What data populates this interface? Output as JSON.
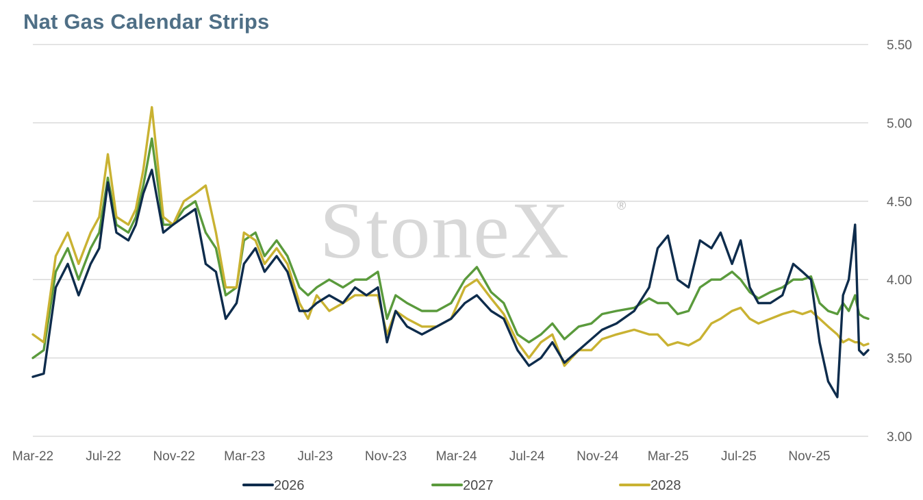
{
  "title": "Nat Gas Calendar Strips",
  "watermark": "StoneX",
  "colors": {
    "2026": "#0e2c4c",
    "2027": "#5a9a3c",
    "2028": "#c9b232",
    "grid": "#d4d4d4",
    "title": "#4f6f86"
  },
  "chart_data": {
    "type": "line",
    "title": "Nat Gas Calendar Strips",
    "x_tick_labels": [
      "Mar-22",
      "Jul-22",
      "Nov-22",
      "Mar-23",
      "Jul-23",
      "Nov-23",
      "Mar-24",
      "Jul-24",
      "Nov-24",
      "Mar-25",
      "Jul-25",
      "Nov-25"
    ],
    "y_tick_labels": [
      "3.00",
      "3.50",
      "4.00",
      "4.50",
      "5.00",
      "5.50"
    ],
    "ylim": [
      3.0,
      5.5
    ],
    "y_axis_side": "right",
    "grid": true,
    "legend_position": "bottom",
    "series": [
      {
        "name": "2026",
        "x": [
          "2022-03-01",
          "2022-03-20",
          "2022-04-10",
          "2022-05-01",
          "2022-05-20",
          "2022-06-10",
          "2022-06-25",
          "2022-07-10",
          "2022-07-25",
          "2022-08-15",
          "2022-08-28",
          "2022-09-10",
          "2022-09-25",
          "2022-10-15",
          "2022-11-01",
          "2022-11-20",
          "2022-12-10",
          "2022-12-28",
          "2023-01-15",
          "2023-02-01",
          "2023-02-20",
          "2023-03-05",
          "2023-03-25",
          "2023-04-10",
          "2023-05-01",
          "2023-05-20",
          "2023-06-10",
          "2023-06-25",
          "2023-07-10",
          "2023-08-01",
          "2023-08-25",
          "2023-09-15",
          "2023-10-05",
          "2023-10-25",
          "2023-11-10",
          "2023-11-25",
          "2023-12-15",
          "2024-01-10",
          "2024-02-05",
          "2024-03-01",
          "2024-03-25",
          "2024-04-15",
          "2024-05-10",
          "2024-06-01",
          "2024-06-25",
          "2024-07-15",
          "2024-08-05",
          "2024-08-25",
          "2024-09-15",
          "2024-10-10",
          "2024-11-01",
          "2024-11-20",
          "2024-12-15",
          "2025-01-15",
          "2025-02-10",
          "2025-02-25",
          "2025-03-15",
          "2025-04-01",
          "2025-04-20",
          "2025-05-10",
          "2025-05-30",
          "2025-06-15",
          "2025-07-05",
          "2025-07-20",
          "2025-08-05",
          "2025-08-20",
          "2025-09-10",
          "2025-10-01",
          "2025-10-20",
          "2025-11-05",
          "2025-11-20",
          "2025-12-05",
          "2025-12-20",
          "2026-01-05",
          "2026-01-15",
          "2026-01-25",
          "2026-02-05",
          "2026-02-12",
          "2026-02-20",
          "2026-02-28"
        ],
        "y": [
          3.38,
          3.4,
          3.95,
          4.1,
          3.9,
          4.1,
          4.2,
          4.62,
          4.3,
          4.25,
          4.35,
          4.55,
          4.7,
          4.3,
          4.35,
          4.4,
          4.45,
          4.1,
          4.05,
          3.75,
          3.85,
          4.1,
          4.2,
          4.05,
          4.15,
          4.05,
          3.8,
          3.8,
          3.85,
          3.9,
          3.85,
          3.95,
          3.9,
          3.95,
          3.6,
          3.8,
          3.7,
          3.65,
          3.7,
          3.75,
          3.85,
          3.9,
          3.8,
          3.75,
          3.55,
          3.45,
          3.5,
          3.6,
          3.47,
          3.55,
          3.62,
          3.68,
          3.72,
          3.8,
          3.95,
          4.2,
          4.28,
          4.0,
          3.95,
          4.25,
          4.2,
          4.3,
          4.1,
          4.25,
          3.95,
          3.85,
          3.85,
          3.9,
          4.1,
          4.05,
          4.0,
          3.6,
          3.35,
          3.25,
          3.9,
          4.0,
          4.35,
          3.55,
          3.52,
          3.55
        ]
      },
      {
        "name": "2027",
        "x": [
          "2022-03-01",
          "2022-03-20",
          "2022-04-10",
          "2022-05-01",
          "2022-05-20",
          "2022-06-10",
          "2022-06-25",
          "2022-07-10",
          "2022-07-25",
          "2022-08-15",
          "2022-08-28",
          "2022-09-10",
          "2022-09-25",
          "2022-10-15",
          "2022-11-01",
          "2022-11-20",
          "2022-12-10",
          "2022-12-28",
          "2023-01-15",
          "2023-02-01",
          "2023-02-20",
          "2023-03-05",
          "2023-03-25",
          "2023-04-10",
          "2023-05-01",
          "2023-05-20",
          "2023-06-10",
          "2023-06-25",
          "2023-07-10",
          "2023-08-01",
          "2023-08-25",
          "2023-09-15",
          "2023-10-05",
          "2023-10-25",
          "2023-11-10",
          "2023-11-25",
          "2023-12-15",
          "2024-01-10",
          "2024-02-05",
          "2024-03-01",
          "2024-03-25",
          "2024-04-15",
          "2024-05-10",
          "2024-06-01",
          "2024-06-25",
          "2024-07-15",
          "2024-08-05",
          "2024-08-25",
          "2024-09-15",
          "2024-10-10",
          "2024-11-01",
          "2024-11-20",
          "2024-12-15",
          "2025-01-15",
          "2025-02-10",
          "2025-02-25",
          "2025-03-15",
          "2025-04-01",
          "2025-04-20",
          "2025-05-10",
          "2025-05-30",
          "2025-06-15",
          "2025-07-05",
          "2025-07-20",
          "2025-08-05",
          "2025-08-20",
          "2025-09-10",
          "2025-10-01",
          "2025-10-20",
          "2025-11-05",
          "2025-11-20",
          "2025-12-05",
          "2025-12-20",
          "2026-01-05",
          "2026-01-15",
          "2026-01-25",
          "2026-02-05",
          "2026-02-12",
          "2026-02-20",
          "2026-02-28"
        ],
        "y": [
          3.5,
          3.55,
          4.05,
          4.2,
          4.0,
          4.2,
          4.3,
          4.65,
          4.35,
          4.3,
          4.4,
          4.6,
          4.9,
          4.35,
          4.35,
          4.45,
          4.5,
          4.3,
          4.2,
          3.9,
          3.95,
          4.25,
          4.3,
          4.15,
          4.25,
          4.15,
          3.95,
          3.9,
          3.95,
          4.0,
          3.95,
          4.0,
          4.0,
          4.05,
          3.75,
          3.9,
          3.85,
          3.8,
          3.8,
          3.85,
          4.0,
          4.08,
          3.92,
          3.85,
          3.65,
          3.6,
          3.65,
          3.72,
          3.62,
          3.7,
          3.72,
          3.78,
          3.8,
          3.82,
          3.88,
          3.85,
          3.85,
          3.78,
          3.8,
          3.95,
          4.0,
          4.0,
          4.05,
          4.0,
          3.92,
          3.88,
          3.92,
          3.95,
          4.0,
          4.0,
          4.02,
          3.85,
          3.8,
          3.78,
          3.85,
          3.8,
          3.9,
          3.78,
          3.76,
          3.75
        ]
      },
      {
        "name": "2028",
        "x": [
          "2022-03-01",
          "2022-03-20",
          "2022-04-10",
          "2022-05-01",
          "2022-05-20",
          "2022-06-10",
          "2022-06-25",
          "2022-07-10",
          "2022-07-25",
          "2022-08-15",
          "2022-08-28",
          "2022-09-10",
          "2022-09-25",
          "2022-10-15",
          "2022-11-01",
          "2022-11-20",
          "2022-12-10",
          "2022-12-28",
          "2023-01-15",
          "2023-02-01",
          "2023-02-20",
          "2023-03-05",
          "2023-03-25",
          "2023-04-10",
          "2023-05-01",
          "2023-05-20",
          "2023-06-10",
          "2023-06-25",
          "2023-07-10",
          "2023-08-01",
          "2023-08-25",
          "2023-09-15",
          "2023-10-05",
          "2023-10-25",
          "2023-11-10",
          "2023-11-25",
          "2023-12-15",
          "2024-01-10",
          "2024-02-05",
          "2024-03-01",
          "2024-03-25",
          "2024-04-15",
          "2024-05-10",
          "2024-06-01",
          "2024-06-25",
          "2024-07-15",
          "2024-08-05",
          "2024-08-25",
          "2024-09-15",
          "2024-10-10",
          "2024-11-01",
          "2024-11-20",
          "2024-12-15",
          "2025-01-15",
          "2025-02-10",
          "2025-02-25",
          "2025-03-15",
          "2025-04-01",
          "2025-04-20",
          "2025-05-10",
          "2025-05-30",
          "2025-06-15",
          "2025-07-05",
          "2025-07-20",
          "2025-08-05",
          "2025-08-20",
          "2025-09-10",
          "2025-10-01",
          "2025-10-20",
          "2025-11-05",
          "2025-11-20",
          "2025-12-05",
          "2025-12-20",
          "2026-01-05",
          "2026-01-15",
          "2026-01-25",
          "2026-02-05",
          "2026-02-12",
          "2026-02-20",
          "2026-02-28"
        ],
        "y": [
          3.65,
          3.6,
          4.15,
          4.3,
          4.1,
          4.3,
          4.4,
          4.8,
          4.4,
          4.35,
          4.45,
          4.7,
          5.1,
          4.4,
          4.35,
          4.5,
          4.55,
          4.6,
          4.3,
          3.95,
          3.95,
          4.3,
          4.25,
          4.1,
          4.2,
          4.1,
          3.85,
          3.75,
          3.9,
          3.8,
          3.85,
          3.9,
          3.9,
          3.9,
          3.65,
          3.8,
          3.75,
          3.7,
          3.7,
          3.75,
          3.95,
          4.0,
          3.88,
          3.78,
          3.6,
          3.5,
          3.6,
          3.65,
          3.45,
          3.55,
          3.55,
          3.62,
          3.65,
          3.68,
          3.65,
          3.65,
          3.58,
          3.6,
          3.58,
          3.62,
          3.72,
          3.75,
          3.8,
          3.82,
          3.75,
          3.72,
          3.75,
          3.78,
          3.8,
          3.78,
          3.8,
          3.75,
          3.7,
          3.65,
          3.6,
          3.62,
          3.6,
          3.6,
          3.58,
          3.59
        ]
      }
    ]
  }
}
